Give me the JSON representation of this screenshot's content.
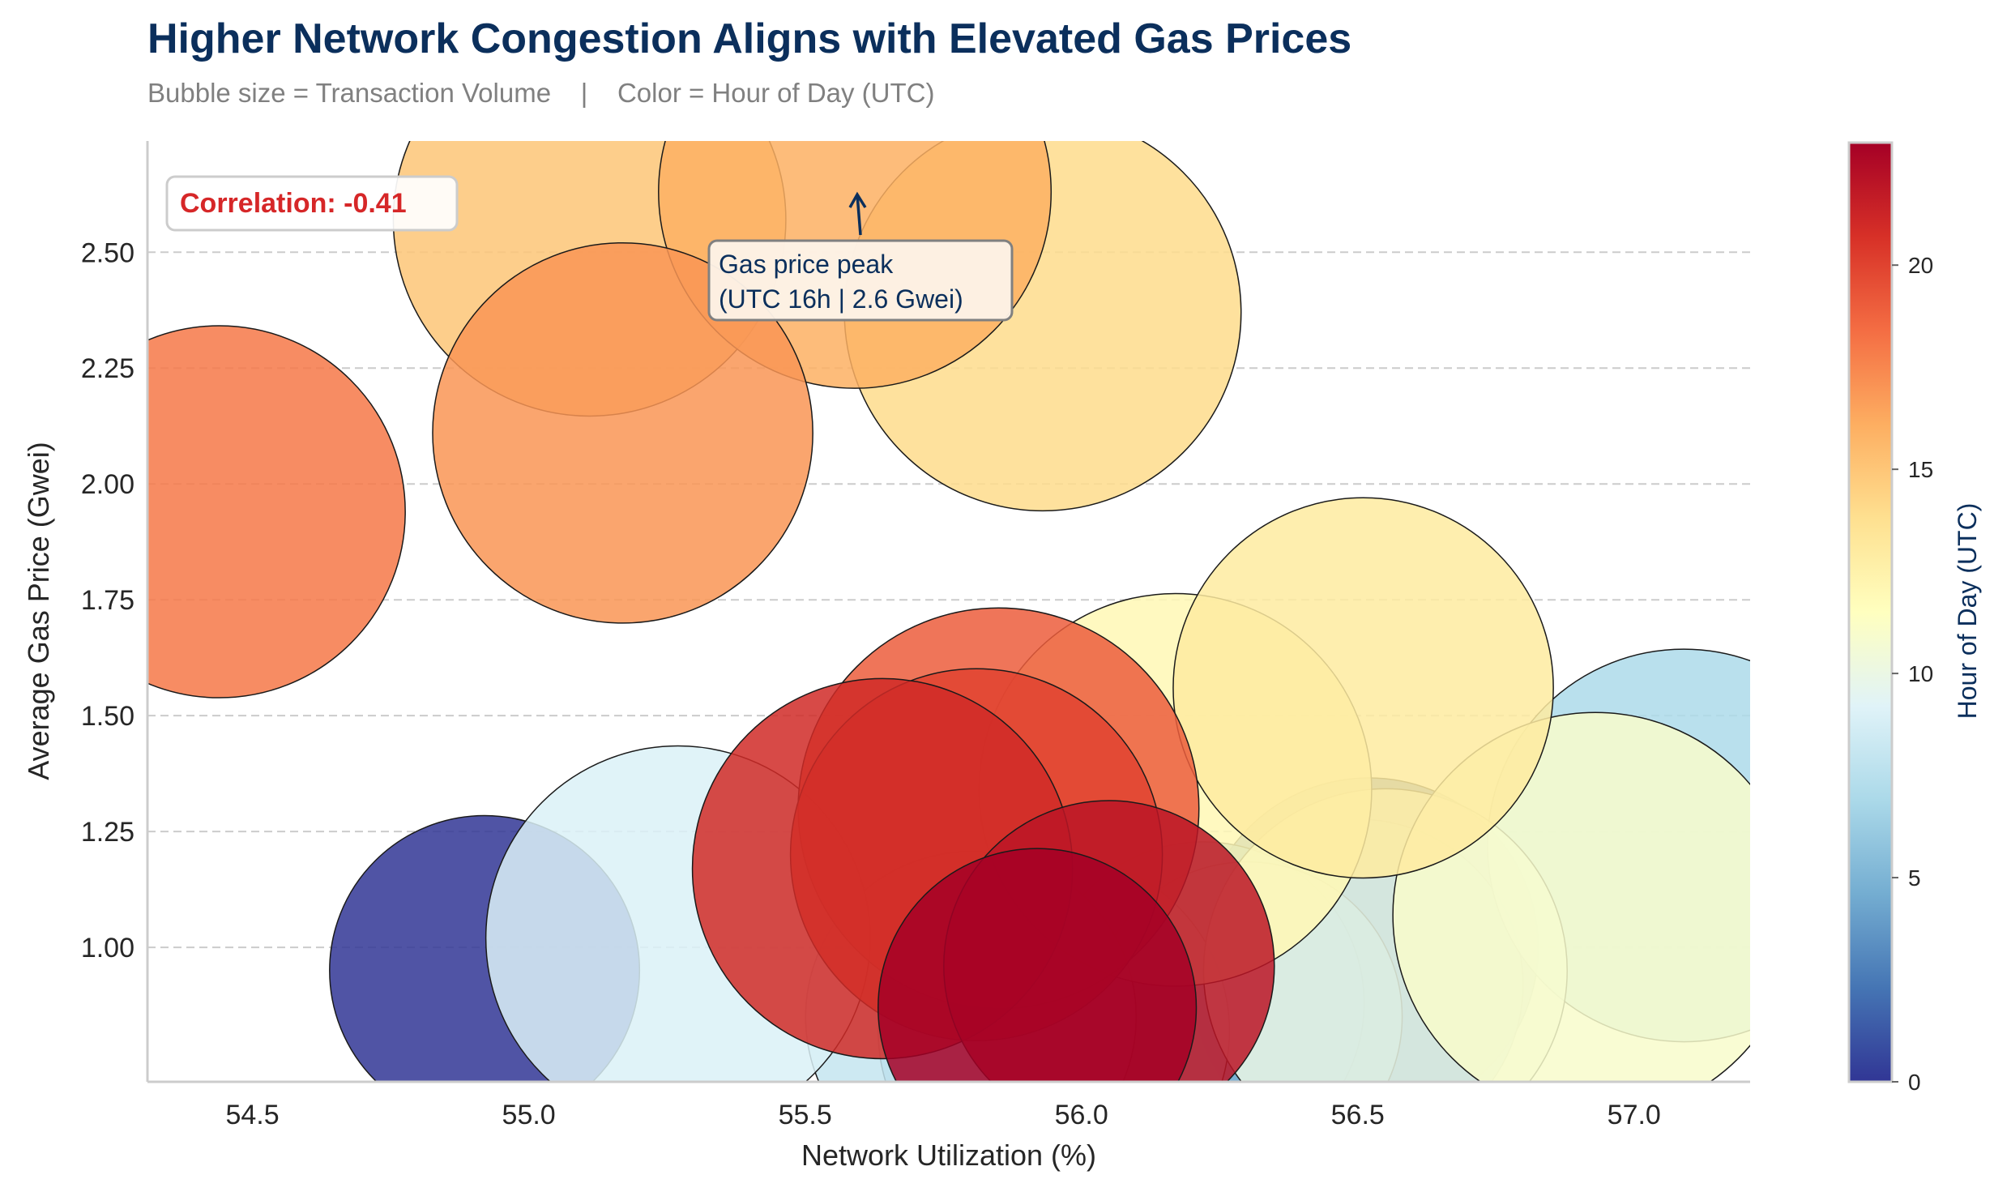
{
  "header": {
    "title": "Higher Network Congestion Aligns with Elevated Gas Prices",
    "subtitle": "Bubble size = Transaction Volume    |    Color = Hour of Day (UTC)"
  },
  "chart_data": {
    "type": "scatter",
    "title": "Higher Network Congestion Aligns with Elevated Gas Prices",
    "subtitle": "Bubble size = Transaction Volume    |    Color = Hour of Day (UTC)",
    "xlabel": "Network Utilization (%)",
    "ylabel": "Average Gas Price (Gwei)",
    "xlim": [
      54.31,
      57.21
    ],
    "ylim": [
      0.71,
      2.74
    ],
    "xticks": [
      54.5,
      55.0,
      55.5,
      56.0,
      56.5,
      57.0
    ],
    "xtick_labels": [
      "54.5",
      "55.0",
      "55.5",
      "56.0",
      "56.5",
      "57.0"
    ],
    "yticks": [
      1.0,
      1.25,
      1.5,
      1.75,
      2.0,
      2.25,
      2.5
    ],
    "ytick_labels": [
      "1.00",
      "1.25",
      "1.50",
      "1.75",
      "2.00",
      "2.25",
      "2.50"
    ],
    "grid": "horizontal dashed",
    "colorbar": {
      "label": "Hour of Day (UTC)",
      "range": [
        0,
        23
      ],
      "ticks": [
        0,
        5,
        10,
        15,
        20
      ],
      "tick_labels": [
        "0",
        "5",
        "10",
        "15",
        "20"
      ],
      "colormap": "RdYlBu_r"
    },
    "annotations": {
      "correlation": "Correlation: -0.41",
      "peak_label_line1": "Gas price peak",
      "peak_label_line2": "(UTC 16h | 2.6 Gwei)",
      "peak_x": 55.59,
      "peak_y": 2.63
    },
    "points": [
      {
        "x": 54.92,
        "y": 0.95,
        "volume": 0.75,
        "hour": 0
      },
      {
        "x": 56.52,
        "y": 1.0,
        "volume": 0.82,
        "hour": 2
      },
      {
        "x": 56.5,
        "y": 0.92,
        "volume": 0.8,
        "hour": 3
      },
      {
        "x": 56.22,
        "y": 0.88,
        "volume": 0.78,
        "hour": 4
      },
      {
        "x": 56.3,
        "y": 0.85,
        "volume": 0.75,
        "hour": 5
      },
      {
        "x": 55.95,
        "y": 0.82,
        "volume": 0.85,
        "hour": 6
      },
      {
        "x": 57.09,
        "y": 1.22,
        "volume": 0.95,
        "hour": 7
      },
      {
        "x": 55.8,
        "y": 0.85,
        "volume": 0.8,
        "hour": 8
      },
      {
        "x": 55.27,
        "y": 1.02,
        "volume": 0.93,
        "hour": 9
      },
      {
        "x": 56.55,
        "y": 0.95,
        "volume": 0.88,
        "hour": 10
      },
      {
        "x": 56.93,
        "y": 1.07,
        "volume": 0.98,
        "hour": 11
      },
      {
        "x": 56.17,
        "y": 1.34,
        "volume": 0.95,
        "hour": 12
      },
      {
        "x": 56.51,
        "y": 1.56,
        "volume": 0.92,
        "hour": 13
      },
      {
        "x": 55.93,
        "y": 2.37,
        "volume": 0.96,
        "hour": 14
      },
      {
        "x": 55.11,
        "y": 2.57,
        "volume": 0.95,
        "hour": 15
      },
      {
        "x": 55.59,
        "y": 2.63,
        "volume": 0.95,
        "hour": 16
      },
      {
        "x": 55.17,
        "y": 2.11,
        "volume": 0.92,
        "hour": 17
      },
      {
        "x": 54.44,
        "y": 1.94,
        "volume": 0.9,
        "hour": 18
      },
      {
        "x": 55.85,
        "y": 1.3,
        "volume": 0.97,
        "hour": 19
      },
      {
        "x": 55.81,
        "y": 1.2,
        "volume": 0.9,
        "hour": 20
      },
      {
        "x": 55.64,
        "y": 1.17,
        "volume": 0.92,
        "hour": 21
      },
      {
        "x": 56.05,
        "y": 0.96,
        "volume": 0.8,
        "hour": 22
      },
      {
        "x": 55.92,
        "y": 0.87,
        "volume": 0.77,
        "hour": 23
      }
    ]
  }
}
